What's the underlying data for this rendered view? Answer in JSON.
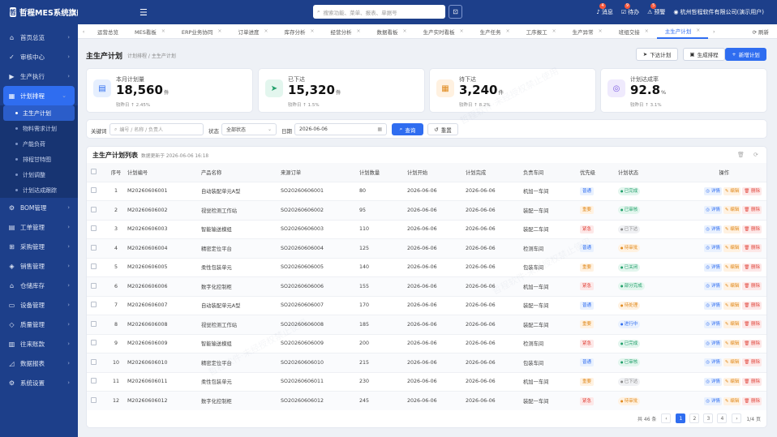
{
  "app": {
    "title": "哲程MES系统旗舰版 · ENT",
    "logo": "哲"
  },
  "sidebar": {
    "items": [
      {
        "label": "首页总览",
        "icon": "home-icon"
      },
      {
        "label": "审核中心",
        "icon": "check-icon"
      },
      {
        "label": "生产执行",
        "icon": "play-icon"
      },
      {
        "label": "计划排程",
        "icon": "calendar-icon",
        "active": true
      },
      {
        "label": "BOM管理",
        "icon": "tree-icon"
      },
      {
        "label": "工单管理",
        "icon": "order-icon"
      },
      {
        "label": "采购管理",
        "icon": "cart-icon"
      },
      {
        "label": "销售管理",
        "icon": "sale-icon"
      },
      {
        "label": "仓储库存",
        "icon": "warehouse-icon"
      },
      {
        "label": "设备管理",
        "icon": "device-icon"
      },
      {
        "label": "质量管理",
        "icon": "shield-icon"
      },
      {
        "label": "往来账款",
        "icon": "bank-icon"
      },
      {
        "label": "数据报表",
        "icon": "chart-icon"
      },
      {
        "label": "系统设置",
        "icon": "gear-icon"
      }
    ],
    "subitems": [
      "主生产计划",
      "物料需求计划",
      "产能负荷",
      "排程甘特图",
      "计划调整",
      "计划达成跟踪"
    ]
  },
  "topbar": {
    "search_placeholder": "搜索功能、菜单、报表、单据号",
    "tools": [
      {
        "label": "消息",
        "badge": "4"
      },
      {
        "label": "待办",
        "badge": "9"
      },
      {
        "label": "预警",
        "badge": "5"
      }
    ],
    "company": "杭州哲程软件有限公司(演示用户)"
  },
  "tabs": [
    "运营总览",
    "MES看板",
    "ERP业务协同",
    "订单进度",
    "库存分析",
    "经营分析",
    "数据看板",
    "生产实时看板",
    "生产任务",
    "工序报工",
    "生产异常",
    "班组交接",
    "主生产计划"
  ],
  "tabs_refresh": "刷新",
  "page": {
    "title": "主生产计划",
    "crumb": "计划排程 / 主生产计划",
    "btn_issue": "下达计划",
    "btn_gen": "生成排程",
    "btn_new": "新增计划"
  },
  "stats": [
    {
      "label": "本月计划量",
      "value": "18,560",
      "unit": "件",
      "sub": "较昨日 ↑ 2.45%",
      "color": "#2f6df0",
      "bg": "#e6effe",
      "icon": "calendar-icon",
      "glyph": "▤"
    },
    {
      "label": "已下达",
      "value": "15,320",
      "unit": "件",
      "sub": "较昨日 ↑ 1.5%",
      "color": "#22a06b",
      "bg": "#e3f6ee",
      "icon": "send-icon",
      "glyph": "➤"
    },
    {
      "label": "待下达",
      "value": "3,240",
      "unit": "件",
      "sub": "较昨日 ↑ 8.2%",
      "color": "#e08a1e",
      "bg": "#fff1e0",
      "icon": "file-icon",
      "glyph": "▦"
    },
    {
      "label": "计划达成率",
      "value": "92.8",
      "unit": "%",
      "sub": "较昨日 ↑ 3.1%",
      "color": "#7a5ae0",
      "bg": "#efeafd",
      "icon": "target-icon",
      "glyph": "◎"
    }
  ],
  "filter": {
    "kw_label": "关键词",
    "kw_placeholder": "编号 / 名称 / 负责人",
    "status_label": "状态",
    "status_value": "全部状态",
    "date_label": "日期",
    "date_value": "2026-06-06",
    "query": "查询",
    "reset": "重置"
  },
  "table": {
    "title": "主生产计划列表",
    "meta": "数据更新于 2026-06-06 16:18",
    "headers": [
      "序号",
      "计划编号",
      "产品名称",
      "来源订单",
      "计划数量",
      "计划开始",
      "计划完成",
      "负责车间",
      "优先级",
      "计划状态",
      "操作"
    ],
    "actions": [
      "详情",
      "编辑",
      "删除"
    ],
    "rows": [
      [
        "1",
        "M20260606001",
        "自动装配单元A型",
        "SO20260606001",
        "80",
        "2026-06-06",
        "2026-06-06",
        "机加一车间",
        "普通",
        "已完成"
      ],
      [
        "2",
        "M20260606002",
        "视觉检测工作站",
        "SO20260606002",
        "95",
        "2026-06-06",
        "2026-06-06",
        "装配一车间",
        "重要",
        "已审核"
      ],
      [
        "3",
        "M20260606003",
        "智能输送模组",
        "SO20260606003",
        "110",
        "2026-06-06",
        "2026-06-06",
        "装配二车间",
        "紧急",
        "已下达"
      ],
      [
        "4",
        "M20260606004",
        "精密定位平台",
        "SO20260606004",
        "125",
        "2026-06-06",
        "2026-06-06",
        "检测车间",
        "普通",
        "待审批"
      ],
      [
        "5",
        "M20260606005",
        "柔性包装单元",
        "SO20260606005",
        "140",
        "2026-06-06",
        "2026-06-06",
        "包装车间",
        "重要",
        "已关闭"
      ],
      [
        "6",
        "M20260606006",
        "数字化控制柜",
        "SO20260606006",
        "155",
        "2026-06-06",
        "2026-06-06",
        "机加一车间",
        "紧急",
        "部分完成"
      ],
      [
        "7",
        "M20260606007",
        "自动装配单元A型",
        "SO20260606007",
        "170",
        "2026-06-06",
        "2026-06-06",
        "装配一车间",
        "普通",
        "待处理"
      ],
      [
        "8",
        "M20260606008",
        "视觉检测工作站",
        "SO20260606008",
        "185",
        "2026-06-06",
        "2026-06-06",
        "装配二车间",
        "重要",
        "进行中"
      ],
      [
        "9",
        "M20260606009",
        "智能输送模组",
        "SO20260606009",
        "200",
        "2026-06-06",
        "2026-06-06",
        "检测车间",
        "紧急",
        "已完成"
      ],
      [
        "10",
        "M20260606010",
        "精密定位平台",
        "SO20260606010",
        "215",
        "2026-06-06",
        "2026-06-06",
        "包装车间",
        "普通",
        "已审核"
      ],
      [
        "11",
        "M20260606011",
        "柔性包装单元",
        "SO20260606011",
        "230",
        "2026-06-06",
        "2026-06-06",
        "机加一车间",
        "重要",
        "已下达"
      ],
      [
        "12",
        "M20260606012",
        "数字化控制柜",
        "SO20260606012",
        "245",
        "2026-06-06",
        "2026-06-06",
        "装配一车间",
        "紧急",
        "待审批"
      ]
    ]
  },
  "pager": {
    "total": "共 46 条",
    "pages": [
      "1",
      "2",
      "3",
      "4"
    ],
    "info": "1/4 页"
  },
  "colors": {
    "primary": "#2f6df0",
    "sidebar": "#1d3f8a"
  }
}
